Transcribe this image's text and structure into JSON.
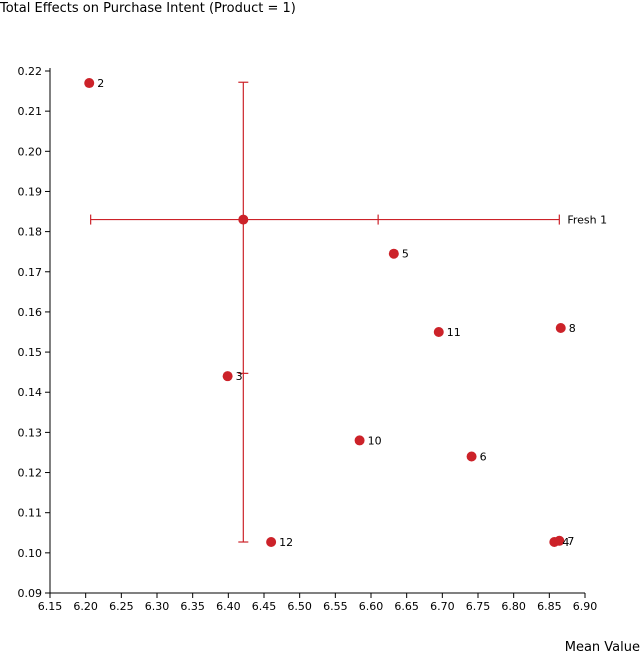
{
  "chart_data": {
    "type": "scatter",
    "title": "Total Effects on Purchase Intent (Product = 1)",
    "xlabel": "Mean Value",
    "ylabel": "",
    "xlim": [
      6.15,
      6.9
    ],
    "ylim": [
      0.09,
      0.22
    ],
    "xticks": [
      "6.15",
      "6.20",
      "6.25",
      "6.30",
      "6.35",
      "6.40",
      "6.45",
      "6.50",
      "6.55",
      "6.60",
      "6.65",
      "6.70",
      "6.75",
      "6.80",
      "6.85",
      "6.90"
    ],
    "yticks": [
      "0.09",
      "0.10",
      "0.11",
      "0.12",
      "0.13",
      "0.14",
      "0.15",
      "0.16",
      "0.17",
      "0.18",
      "0.19",
      "0.20",
      "0.21",
      "0.22"
    ],
    "grid": false,
    "color": "#cc2229",
    "points": [
      {
        "label": "2",
        "x": 6.205,
        "y": 0.217
      },
      {
        "label": "",
        "x": 6.421,
        "y": 0.183
      },
      {
        "label": "5",
        "x": 6.632,
        "y": 0.1745
      },
      {
        "label": "11",
        "x": 6.695,
        "y": 0.155
      },
      {
        "label": "8",
        "x": 6.866,
        "y": 0.156
      },
      {
        "label": "3",
        "x": 6.399,
        "y": 0.144
      },
      {
        "label": "10",
        "x": 6.584,
        "y": 0.128
      },
      {
        "label": "6",
        "x": 6.741,
        "y": 0.124
      },
      {
        "label": "12",
        "x": 6.46,
        "y": 0.1027
      },
      {
        "label": "4",
        "x": 6.857,
        "y": 0.1027
      },
      {
        "label": "7",
        "x": 6.864,
        "y": 0.103
      }
    ],
    "crosshair": {
      "label": "Fresh 1",
      "center": {
        "x": 6.421,
        "y": 0.183
      },
      "x_range": [
        6.207,
        6.864
      ],
      "x_mid_tick": 6.61,
      "y_range": [
        0.1027,
        0.2172
      ],
      "y_mid_tick": 0.1447
    }
  }
}
